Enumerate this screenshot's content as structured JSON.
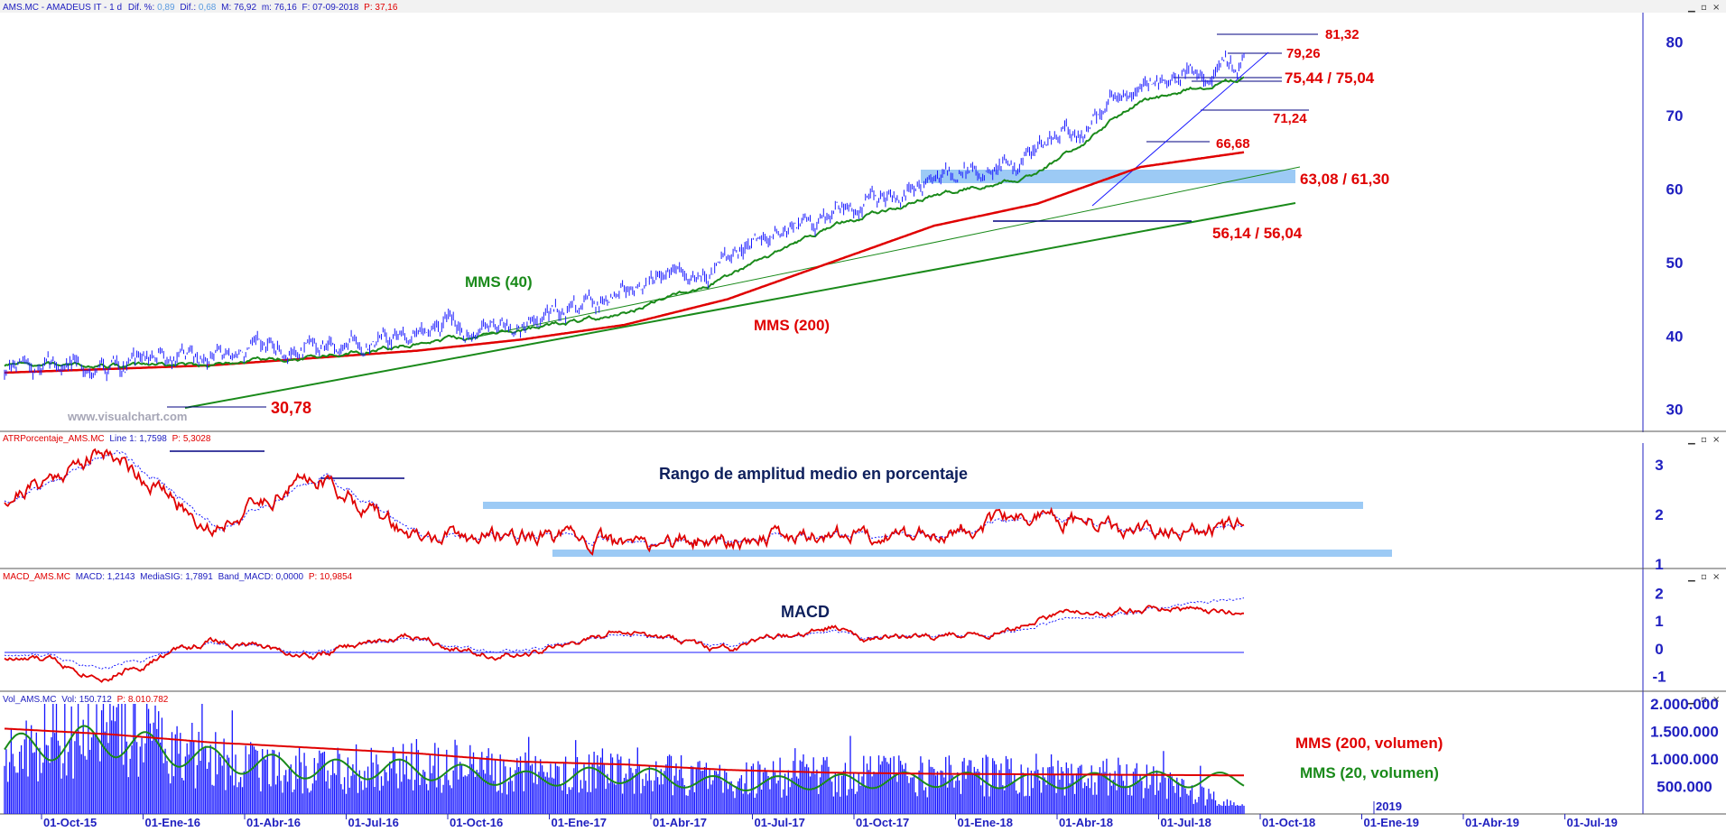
{
  "panels": {
    "price": {
      "header": {
        "symbol": "AMS.MC - AMADEUS IT -  1 d",
        "dif_pct_label": "Dif. %:",
        "dif_pct_value": "0,89",
        "dif_label": "Dif.:",
        "dif_value": "0,68",
        "max": "M: 76,92",
        "min": "m: 76,16",
        "date": "F: 07-09-2018",
        "p": "P: 37,16"
      },
      "watermark": "www.visualchart.com",
      "annotations": {
        "mms40": "MMS (40)",
        "mms200": "MMS (200)",
        "l1": "81,32",
        "l2": "79,26",
        "l3": "75,44 / 75,04",
        "l4": "71,24",
        "l5": "66,68",
        "l6": "63,08 / 61,30",
        "l7": "56,14 / 56,04",
        "l8": "30,78"
      },
      "y_ticks": [
        "80",
        "70",
        "60",
        "50",
        "40",
        "30"
      ]
    },
    "atr": {
      "header": {
        "name": "ATRPorcentaje_AMS.MC",
        "line_label": "Line 1:",
        "line_value": "1,7598",
        "p": "P: 5,3028"
      },
      "title": "Rango de amplitud medio en porcentaje",
      "y_ticks": [
        "3",
        "2",
        "1"
      ]
    },
    "macd": {
      "header": {
        "name": "MACD_AMS.MC",
        "macd": "MACD: 1,2143",
        "sig": "MediaSIG: 1,7891",
        "band": "Band_MACD: 0,0000",
        "p": "P: 10,9854"
      },
      "title": "MACD",
      "y_ticks": [
        "2",
        "1",
        "0",
        "-1"
      ]
    },
    "vol": {
      "header": {
        "name": "Vol_AMS.MC",
        "vol": "Vol: 150.712",
        "p": "P: 8.010.782"
      },
      "legend_200": "MMS (200, volumen)",
      "legend_20": "MMS (20, volumen)",
      "y_ticks": [
        "2.000.000",
        "1.500.000",
        "1.000.000",
        "500.000"
      ]
    }
  },
  "x_axis": {
    "labels": [
      "01-Oct-15",
      "01-Ene-16",
      "01-Abr-16",
      "01-Jul-16",
      "01-Oct-16",
      "01-Ene-17",
      "01-Abr-17",
      "01-Jul-17",
      "01-Oct-17",
      "01-Ene-18",
      "01-Abr-18",
      "01-Jul-18",
      "01-Oct-18",
      "01-Ene-19",
      "01-Abr-19",
      "01-Jul-19"
    ],
    "year_marker": "2019"
  },
  "colors": {
    "price": "#1a1aff",
    "mms40": "#1a8a1a",
    "mms200": "#e00000",
    "band": "#9ccaf5",
    "annotation": "#e00000",
    "axis": "#1a1ad0"
  },
  "chart_data": [
    {
      "type": "line",
      "title": "AMS.MC - AMADEUS IT",
      "x": [
        "01-Oct-15",
        "01-Ene-16",
        "01-Abr-16",
        "01-Jul-16",
        "01-Oct-16",
        "01-Ene-17",
        "01-Abr-17",
        "01-Jul-17",
        "01-Oct-17",
        "01-Ene-18",
        "01-Abr-18",
        "01-Jul-18",
        "07-Sep-18"
      ],
      "series": [
        {
          "name": "Price",
          "values": [
            35,
            36,
            37,
            38,
            41,
            42,
            46,
            50,
            57,
            61,
            65,
            74,
            77
          ]
        },
        {
          "name": "MMS (40)",
          "values": [
            36,
            36,
            36,
            37,
            39,
            41,
            43,
            48,
            55,
            59,
            62,
            72,
            75
          ]
        },
        {
          "name": "MMS (200)",
          "values": [
            35,
            35.5,
            36,
            37,
            38,
            39.5,
            41.5,
            45,
            50,
            55,
            58,
            63,
            65
          ]
        }
      ],
      "levels": [
        81.32,
        79.26,
        75.44,
        75.04,
        71.24,
        66.68,
        63.08,
        61.3,
        56.14,
        56.04,
        30.78
      ],
      "ylim": [
        28,
        84
      ]
    },
    {
      "type": "line",
      "title": "ATRPorcentaje_AMS.MC",
      "x": [
        "01-Oct-15",
        "01-Ene-16",
        "01-Abr-16",
        "01-Jul-16",
        "01-Oct-16",
        "01-Ene-17",
        "01-Abr-17",
        "01-Jul-17",
        "01-Oct-17",
        "01-Ene-18",
        "01-Abr-18",
        "01-Jul-18",
        "07-Sep-18"
      ],
      "series": [
        {
          "name": "Line 1",
          "values": [
            2.3,
            3.3,
            1.7,
            2.8,
            1.5,
            1.6,
            1.4,
            1.5,
            1.6,
            1.6,
            2.0,
            1.6,
            1.76
          ]
        }
      ],
      "ylim": [
        1,
        3.4
      ]
    },
    {
      "type": "line",
      "title": "MACD_AMS.MC",
      "x": [
        "01-Oct-15",
        "01-Ene-16",
        "01-Abr-16",
        "01-Jul-16",
        "01-Oct-16",
        "01-Ene-17",
        "01-Abr-17",
        "01-Jul-17",
        "01-Oct-17",
        "01-Ene-18",
        "01-Abr-18",
        "01-Jul-18",
        "07-Sep-18"
      ],
      "series": [
        {
          "name": "MACD",
          "values": [
            -0.3,
            -0.8,
            0.3,
            -0.2,
            0.5,
            -0.3,
            0.6,
            -0.2,
            0.7,
            0.3,
            1.0,
            1.5,
            1.21
          ]
        },
        {
          "name": "MediaSIG",
          "values": [
            -0.2,
            -0.5,
            0.2,
            -0.1,
            0.4,
            -0.1,
            0.5,
            0.0,
            0.6,
            0.4,
            0.8,
            1.4,
            1.79
          ]
        }
      ],
      "ylim": [
        -1.4,
        2.4
      ]
    },
    {
      "type": "bar",
      "title": "Vol_AMS.MC",
      "x": [
        "01-Oct-15",
        "01-Ene-16",
        "01-Abr-16",
        "01-Jul-16",
        "01-Oct-16",
        "01-Ene-17",
        "01-Abr-17",
        "01-Jul-17",
        "01-Oct-17",
        "01-Ene-18",
        "01-Abr-18",
        "01-Jul-18",
        "07-Sep-18"
      ],
      "series": [
        {
          "name": "Vol",
          "values": [
            1500000,
            1900000,
            1200000,
            1000000,
            1100000,
            900000,
            1000000,
            800000,
            900000,
            850000,
            900000,
            800000,
            150712
          ]
        },
        {
          "name": "MMS (200, volumen)",
          "values": [
            1550000,
            1450000,
            1300000,
            1200000,
            1100000,
            950000,
            900000,
            800000,
            750000,
            730000,
            720000,
            710000,
            700000
          ]
        },
        {
          "name": "MMS (20, volumen)",
          "values": [
            1300000,
            1500000,
            1100000,
            900000,
            900000,
            700000,
            800000,
            600000,
            650000,
            700000,
            650000,
            700000,
            680000
          ]
        }
      ],
      "ylim": [
        0,
        2000000
      ]
    }
  ]
}
